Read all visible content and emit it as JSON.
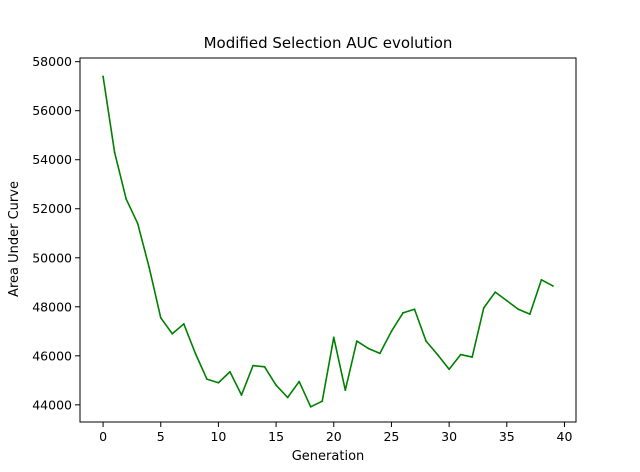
{
  "chart_data": {
    "type": "line",
    "title": "Modified Selection AUC evolution",
    "xlabel": "Generation",
    "ylabel": "Area Under Curve",
    "xlim": [
      -2,
      41
    ],
    "ylim": [
      43300,
      58150
    ],
    "xticks": [
      0,
      5,
      10,
      15,
      20,
      25,
      30,
      35,
      40
    ],
    "yticks": [
      44000,
      46000,
      48000,
      50000,
      52000,
      54000,
      56000,
      58000
    ],
    "grid": false,
    "legend": "none",
    "series": [
      {
        "color": "#008000",
        "x": [
          0,
          1,
          2,
          3,
          4,
          5,
          6,
          7,
          8,
          9,
          10,
          11,
          12,
          13,
          14,
          15,
          16,
          17,
          18,
          19,
          20,
          21,
          22,
          23,
          24,
          25,
          26,
          27,
          28,
          29,
          30,
          31,
          32,
          33,
          34,
          35,
          36,
          37,
          38,
          39
        ],
        "values": [
          57400,
          54300,
          52400,
          51400,
          49600,
          47550,
          46900,
          47300,
          46100,
          45050,
          44900,
          45350,
          44400,
          45600,
          45550,
          44800,
          44300,
          44950,
          43920,
          44150,
          46750,
          44600,
          46600,
          46300,
          46100,
          47000,
          47750,
          47900,
          46600,
          46050,
          45450,
          46050,
          45950,
          47950,
          48600,
          48250,
          47900,
          47700,
          49100,
          48850
        ]
      }
    ]
  }
}
